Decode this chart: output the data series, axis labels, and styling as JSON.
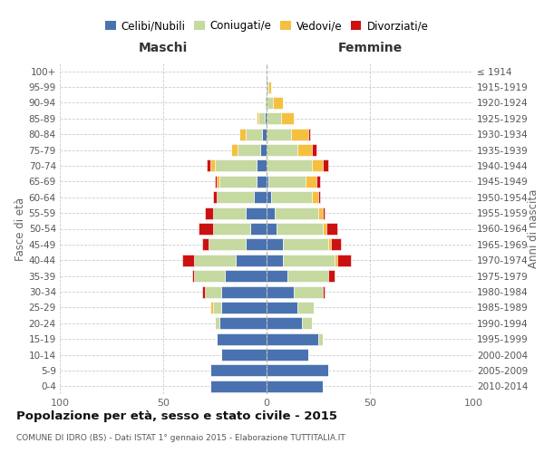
{
  "age_groups": [
    "0-4",
    "5-9",
    "10-14",
    "15-19",
    "20-24",
    "25-29",
    "30-34",
    "35-39",
    "40-44",
    "45-49",
    "50-54",
    "55-59",
    "60-64",
    "65-69",
    "70-74",
    "75-79",
    "80-84",
    "85-89",
    "90-94",
    "95-99",
    "100+"
  ],
  "birth_years": [
    "2010-2014",
    "2005-2009",
    "2000-2004",
    "1995-1999",
    "1990-1994",
    "1985-1989",
    "1980-1984",
    "1975-1979",
    "1970-1974",
    "1965-1969",
    "1960-1964",
    "1955-1959",
    "1950-1954",
    "1945-1949",
    "1940-1944",
    "1935-1939",
    "1930-1934",
    "1925-1929",
    "1920-1924",
    "1915-1919",
    "≤ 1914"
  ],
  "colors": {
    "celibi": "#4a72b0",
    "coniugati": "#c5d9a0",
    "vedovi": "#f5c040",
    "divorziati": "#cc1111"
  },
  "maschi": {
    "celibi": [
      27,
      27,
      22,
      24,
      23,
      22,
      22,
      20,
      15,
      10,
      8,
      10,
      6,
      5,
      5,
      3,
      2,
      1,
      0,
      0,
      0
    ],
    "coniugati": [
      0,
      0,
      0,
      0,
      2,
      4,
      8,
      15,
      20,
      18,
      18,
      16,
      18,
      18,
      20,
      11,
      8,
      3,
      1,
      0,
      0
    ],
    "vedovi": [
      0,
      0,
      0,
      0,
      0,
      1,
      0,
      0,
      0,
      0,
      0,
      0,
      0,
      1,
      2,
      3,
      3,
      1,
      0,
      0,
      0
    ],
    "divorziati": [
      0,
      0,
      0,
      0,
      0,
      0,
      1,
      1,
      6,
      3,
      7,
      4,
      2,
      1,
      2,
      0,
      0,
      0,
      0,
      0,
      0
    ]
  },
  "femmine": {
    "celibi": [
      27,
      30,
      20,
      25,
      17,
      15,
      13,
      10,
      8,
      8,
      5,
      4,
      2,
      1,
      0,
      0,
      0,
      0,
      0,
      0,
      0
    ],
    "coniugati": [
      0,
      0,
      0,
      2,
      5,
      8,
      14,
      20,
      25,
      22,
      22,
      21,
      20,
      18,
      22,
      15,
      12,
      7,
      3,
      1,
      0
    ],
    "vedovi": [
      0,
      0,
      0,
      0,
      0,
      0,
      0,
      0,
      1,
      1,
      2,
      2,
      3,
      5,
      5,
      7,
      8,
      6,
      5,
      1,
      0
    ],
    "divorziati": [
      0,
      0,
      0,
      0,
      0,
      0,
      1,
      3,
      7,
      5,
      5,
      1,
      1,
      2,
      3,
      2,
      1,
      0,
      0,
      0,
      0
    ]
  },
  "xlim": 100,
  "title": "Popolazione per età, sesso e stato civile - 2015",
  "subtitle": "COMUNE DI IDRO (BS) - Dati ISTAT 1° gennaio 2015 - Elaborazione TUTTITALIA.IT",
  "ylabel_left": "Fasce di età",
  "ylabel_right": "Anni di nascita",
  "xlabel_maschi": "Maschi",
  "xlabel_femmine": "Femmine",
  "legend_labels": [
    "Celibi/Nubili",
    "Coniugati/e",
    "Vedovi/e",
    "Divorziati/e"
  ],
  "background_color": "#ffffff",
  "grid_color": "#cccccc"
}
